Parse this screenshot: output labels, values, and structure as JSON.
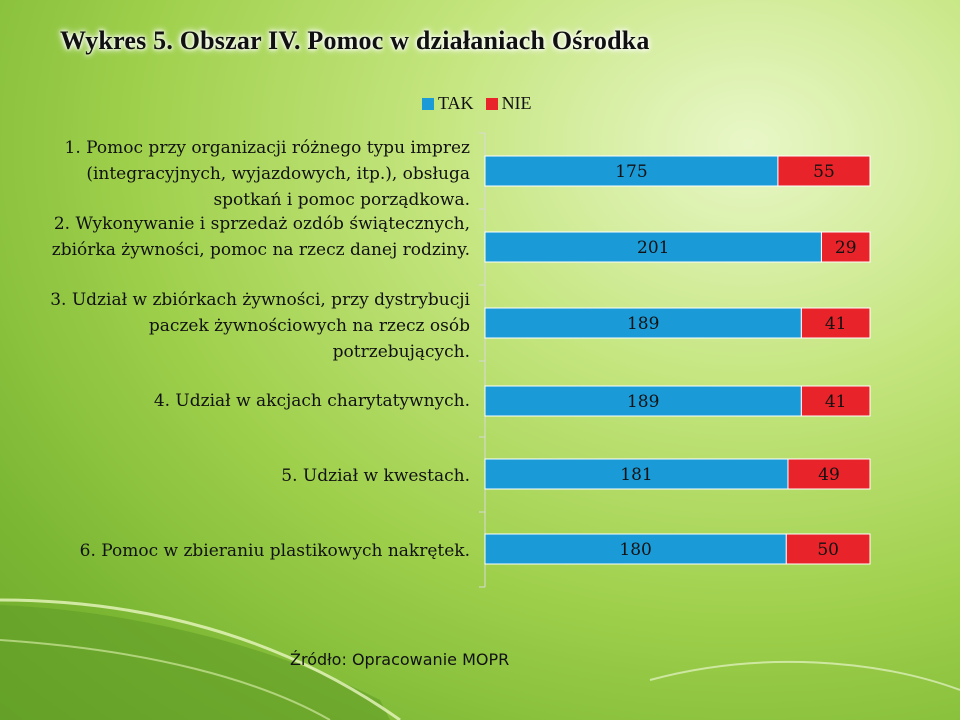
{
  "title": "Wykres 5. Obszar IV. Pomoc w działaniach Ośrodka",
  "source": "Źródło: Opracowanie MOPR",
  "chart_data": {
    "type": "bar",
    "orientation": "horizontal",
    "stacked": true,
    "legend_position": "top",
    "categories": [
      "1. Pomoc przy organizacji różnego typu imprez (integracyjnych, wyjazdowych, itp.), obsługa spotkań i pomoc porządkowa.",
      "2. Wykonywanie i sprzedaż ozdób świątecznych, zbiórka żywności, pomoc na rzecz danej rodziny.",
      "3. Udział w zbiórkach żywności, przy dystrybucji paczek żywnościowych na rzecz osób potrzebujących.",
      "4. Udział w akcjach charytatywnych.",
      "5. Udział w kwestach.",
      "6. Pomoc w zbieraniu plastikowych nakrętek."
    ],
    "series": [
      {
        "name": "TAK",
        "color": "#1a9bd7",
        "values": [
          175,
          201,
          189,
          189,
          181,
          180
        ]
      },
      {
        "name": "NIE",
        "color": "#e8232a",
        "values": [
          55,
          29,
          41,
          41,
          49,
          50
        ]
      }
    ]
  }
}
